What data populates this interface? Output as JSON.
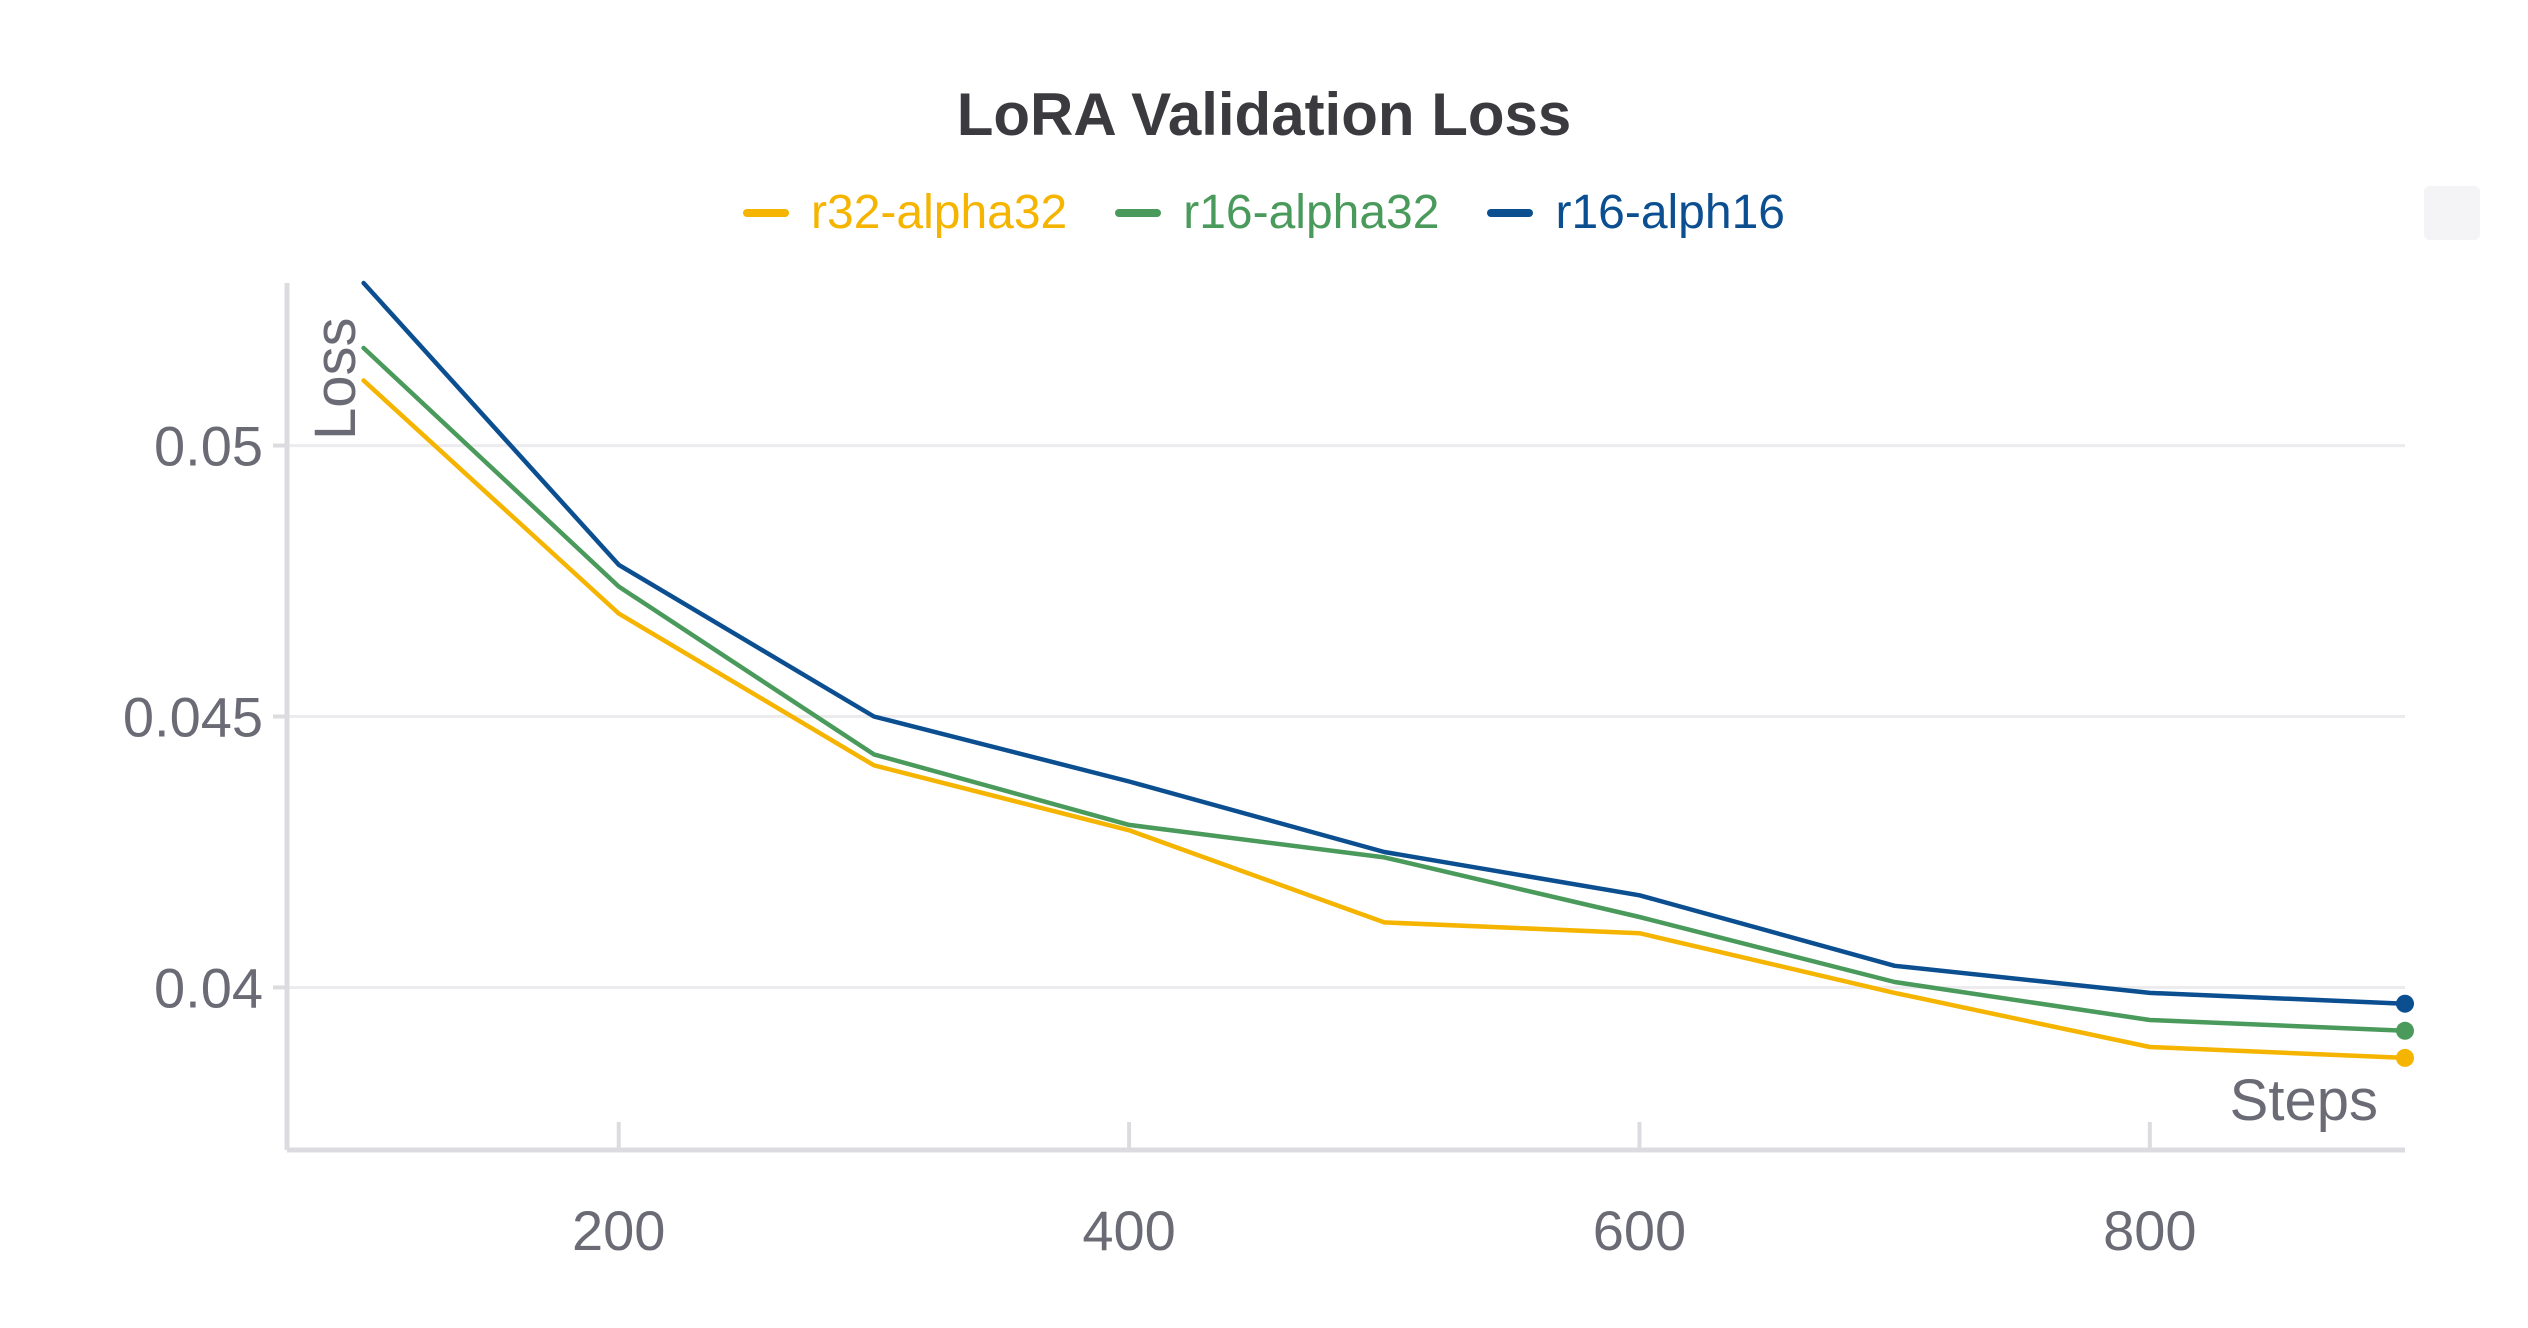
{
  "chart_data": {
    "type": "line",
    "title": "LoRA Validation Loss",
    "xlabel": "Steps",
    "ylabel": "Loss",
    "x": [
      100,
      200,
      300,
      400,
      500,
      600,
      700,
      800,
      900
    ],
    "xlim": [
      70,
      900
    ],
    "ylim": [
      0.037,
      0.053
    ],
    "x_ticks": [
      200,
      400,
      600,
      800
    ],
    "y_ticks": [
      0.04,
      0.045,
      0.05
    ],
    "x_tick_labels": [
      "200",
      "400",
      "600",
      "800"
    ],
    "y_tick_labels": [
      "0.04",
      "0.045",
      "0.05"
    ],
    "grid": true,
    "legend_position": "top",
    "series": [
      {
        "name": "r32-alpha32",
        "color": "#f5b400",
        "values": [
          0.0512,
          0.0469,
          0.0441,
          0.0429,
          0.0412,
          0.041,
          0.0399,
          0.0389,
          0.0387
        ]
      },
      {
        "name": "r16-alpha32",
        "color": "#4a9a5c",
        "values": [
          0.0518,
          0.0474,
          0.0443,
          0.043,
          0.0424,
          0.0413,
          0.0401,
          0.0394,
          0.0392
        ]
      },
      {
        "name": "r16-alph16",
        "color": "#0b4f91",
        "values": [
          0.053,
          0.0478,
          0.045,
          0.0438,
          0.0425,
          0.0417,
          0.0404,
          0.0399,
          0.0397
        ]
      }
    ]
  }
}
